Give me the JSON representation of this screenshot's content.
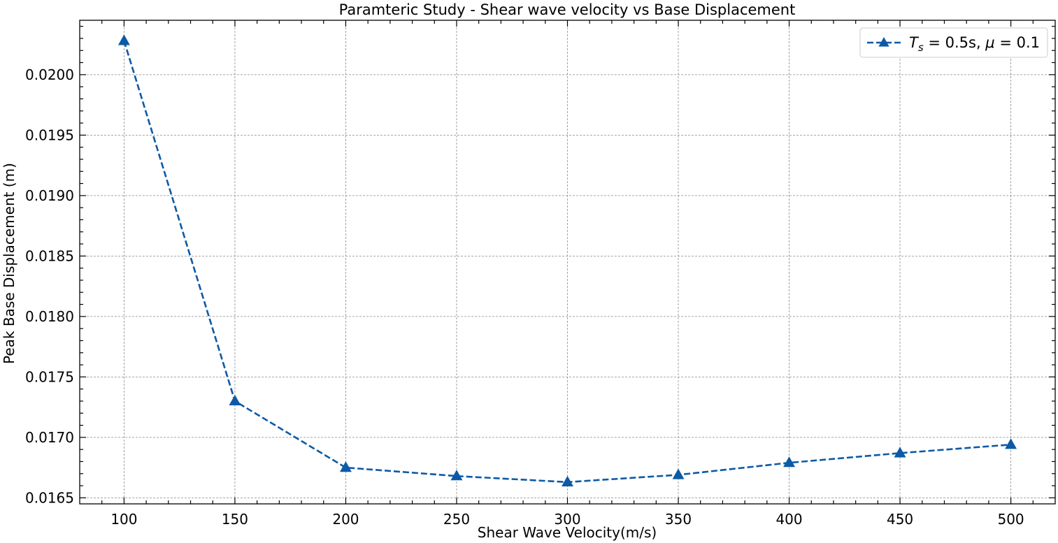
{
  "chart_data": {
    "type": "line",
    "title": "Paramteric Study - Shear wave velocity vs Base Displacement",
    "xlabel": "Shear Wave Velocity(m/s)",
    "ylabel": "Peak Base Displacement (m)",
    "xlim": [
      80,
      520
    ],
    "ylim": [
      0.01645,
      0.02045
    ],
    "x_ticks": [
      100,
      150,
      200,
      250,
      300,
      350,
      400,
      450,
      500
    ],
    "x_tick_labels": [
      "100",
      "150",
      "200",
      "250",
      "300",
      "350",
      "400",
      "450",
      "500"
    ],
    "y_ticks": [
      0.0165,
      0.017,
      0.0175,
      0.018,
      0.0185,
      0.019,
      0.0195,
      0.02
    ],
    "y_tick_labels": [
      "0.0165",
      "0.0170",
      "0.0175",
      "0.0180",
      "0.0185",
      "0.0190",
      "0.0195",
      "0.0200"
    ],
    "grid": true,
    "legend_position": "top-right",
    "series": [
      {
        "name": "T_s = 0.5s, μ = 0.1",
        "name_parts": {
          "var": "T",
          "sub": "s",
          "eq1": " = 0.5s, ",
          "mu": "μ",
          "eq2": " = 0.1"
        },
        "color": "#0c5aa6",
        "marker": "triangle",
        "line_style": "dashed",
        "x": [
          100,
          150,
          200,
          250,
          300,
          350,
          400,
          450,
          500
        ],
        "values": [
          0.02028,
          0.0173,
          0.01675,
          0.01668,
          0.01663,
          0.01669,
          0.01679,
          0.01687,
          0.01694
        ]
      }
    ]
  }
}
